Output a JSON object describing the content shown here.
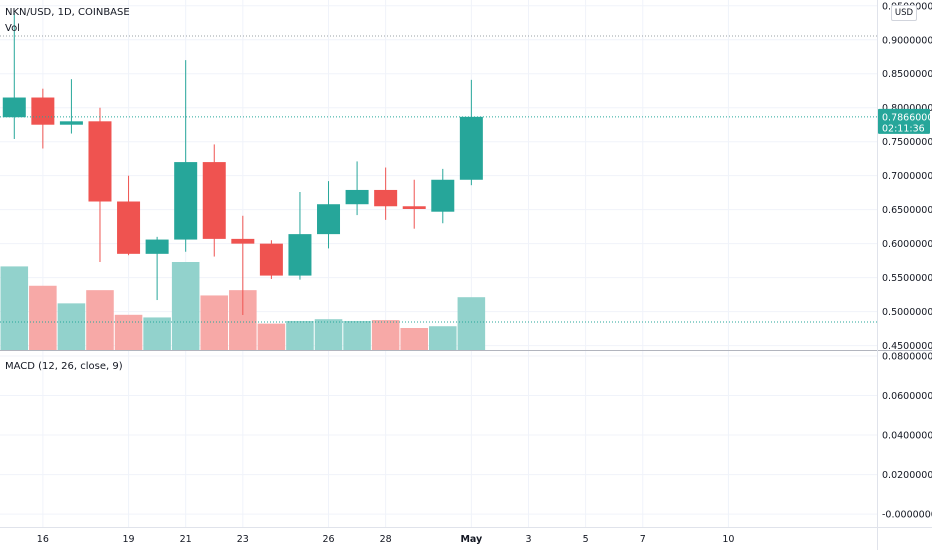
{
  "legend": {
    "symbol": "NKN/USD, 1D, COINBASE",
    "volume": "Vol",
    "macd": "MACD (12, 26, close, 9)"
  },
  "currency_button": "USD",
  "current_price": {
    "value": 0.7866,
    "price_label": "0.78660000",
    "countdown_label": "02:11:36"
  },
  "colors": {
    "up": "#26a69a",
    "down": "#ef5350",
    "up_volume": "#92d2cc",
    "down_volume": "#f7a9a7",
    "grid": "#f0f3fa",
    "text": "#131722"
  },
  "chart_data": {
    "type": "candlestick",
    "price_axis": {
      "range": [
        0.4435,
        0.9585
      ],
      "ticks": [
        {
          "value": 0.45,
          "label": "0.45000000"
        },
        {
          "value": 0.5,
          "label": "0.50000000"
        },
        {
          "value": 0.55,
          "label": "0.55000000"
        },
        {
          "value": 0.6,
          "label": "0.60000000"
        },
        {
          "value": 0.65,
          "label": "0.65000000"
        },
        {
          "value": 0.7,
          "label": "0.70000000"
        },
        {
          "value": 0.75,
          "label": "0.75000000"
        },
        {
          "value": 0.8,
          "label": "0.80000000"
        },
        {
          "value": 0.85,
          "label": "0.85000000"
        },
        {
          "value": 0.9,
          "label": "0.90000000"
        },
        {
          "value": 0.95,
          "label": "0.95000000"
        }
      ]
    },
    "time_axis": {
      "range": [
        14.5,
        45.2
      ],
      "ticks": [
        {
          "day": 16,
          "label": "16"
        },
        {
          "day": 19,
          "label": "19"
        },
        {
          "day": 21,
          "label": "21"
        },
        {
          "day": 23,
          "label": "23"
        },
        {
          "day": 26,
          "label": "26"
        },
        {
          "day": 28,
          "label": "28"
        },
        {
          "day": 31,
          "label": "May"
        },
        {
          "day": 33,
          "label": "3"
        },
        {
          "day": 35,
          "label": "5"
        },
        {
          "day": 37,
          "label": "7"
        },
        {
          "day": 40,
          "label": "10"
        }
      ]
    },
    "candles": [
      {
        "day": 15,
        "open": 0.786,
        "high": 0.94,
        "low": 0.754,
        "close": 0.815
      },
      {
        "day": 16,
        "open": 0.815,
        "high": 0.828,
        "low": 0.74,
        "close": 0.775
      },
      {
        "day": 17,
        "open": 0.775,
        "high": 0.842,
        "low": 0.762,
        "close": 0.78
      },
      {
        "day": 18,
        "open": 0.78,
        "high": 0.8,
        "low": 0.573,
        "close": 0.662
      },
      {
        "day": 19,
        "open": 0.662,
        "high": 0.7,
        "low": 0.583,
        "close": 0.585
      },
      {
        "day": 20,
        "open": 0.585,
        "high": 0.61,
        "low": 0.517,
        "close": 0.606
      },
      {
        "day": 21,
        "open": 0.606,
        "high": 0.87,
        "low": 0.588,
        "close": 0.72
      },
      {
        "day": 22,
        "open": 0.72,
        "high": 0.746,
        "low": 0.581,
        "close": 0.607
      },
      {
        "day": 23,
        "open": 0.607,
        "high": 0.641,
        "low": 0.495,
        "close": 0.6
      },
      {
        "day": 24,
        "open": 0.6,
        "high": 0.605,
        "low": 0.548,
        "close": 0.553
      },
      {
        "day": 25,
        "open": 0.553,
        "high": 0.676,
        "low": 0.547,
        "close": 0.614
      },
      {
        "day": 26,
        "open": 0.614,
        "high": 0.692,
        "low": 0.593,
        "close": 0.658
      },
      {
        "day": 27,
        "open": 0.658,
        "high": 0.721,
        "low": 0.642,
        "close": 0.679
      },
      {
        "day": 28,
        "open": 0.679,
        "high": 0.712,
        "low": 0.635,
        "close": 0.655
      },
      {
        "day": 29,
        "open": 0.655,
        "high": 0.694,
        "low": 0.622,
        "close": 0.651
      },
      {
        "day": 30,
        "open": 0.647,
        "high": 0.71,
        "low": 0.63,
        "close": 0.694
      },
      {
        "day": 31,
        "open": 0.694,
        "high": 0.841,
        "low": 0.686,
        "close": 0.7866
      }
    ],
    "volume": [
      {
        "day": 15,
        "value": 0.95,
        "direction": "up"
      },
      {
        "day": 16,
        "value": 0.73,
        "direction": "down"
      },
      {
        "day": 17,
        "value": 0.53,
        "direction": "up"
      },
      {
        "day": 18,
        "value": 0.68,
        "direction": "down"
      },
      {
        "day": 19,
        "value": 0.4,
        "direction": "down"
      },
      {
        "day": 20,
        "value": 0.37,
        "direction": "up"
      },
      {
        "day": 21,
        "value": 1.0,
        "direction": "up"
      },
      {
        "day": 22,
        "value": 0.62,
        "direction": "down"
      },
      {
        "day": 23,
        "value": 0.68,
        "direction": "down"
      },
      {
        "day": 24,
        "value": 0.3,
        "direction": "down"
      },
      {
        "day": 25,
        "value": 0.33,
        "direction": "up"
      },
      {
        "day": 26,
        "value": 0.35,
        "direction": "up"
      },
      {
        "day": 27,
        "value": 0.33,
        "direction": "up"
      },
      {
        "day": 28,
        "value": 0.34,
        "direction": "down"
      },
      {
        "day": 29,
        "value": 0.25,
        "direction": "down"
      },
      {
        "day": 30,
        "value": 0.27,
        "direction": "up"
      },
      {
        "day": 31,
        "value": 0.6,
        "direction": "up"
      }
    ],
    "macd_axis": {
      "range": [
        -0.0065,
        0.0825
      ],
      "ticks": [
        {
          "value": 0.08,
          "label": "0.08000000"
        },
        {
          "value": 0.06,
          "label": "0.06000000"
        },
        {
          "value": 0.04,
          "label": "0.04000000"
        },
        {
          "value": 0.02,
          "label": "0.02000000"
        },
        {
          "value": 0.0,
          "label": "-0.00000000"
        }
      ]
    },
    "grid": true
  }
}
